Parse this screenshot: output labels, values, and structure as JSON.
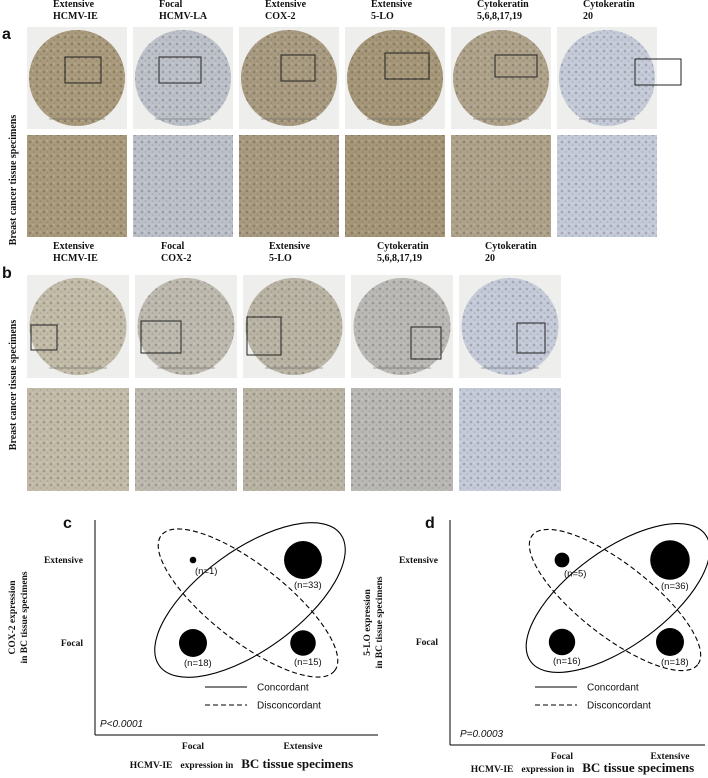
{
  "figure": {
    "panel_a": {
      "label": "a",
      "row_label": "Breast cancer  tissue specimens",
      "columns": [
        [
          "Extensive",
          "HCMV-IE"
        ],
        [
          "Focal",
          "HCMV-LA"
        ],
        [
          "Extensive",
          "COX-2"
        ],
        [
          "Extensive",
          "5-LO"
        ],
        [
          "Cytokeratin",
          "5,6,8,17,19"
        ],
        [
          "Cytokeratin",
          "20"
        ]
      ],
      "stain_colors": [
        "#a99a7c",
        "#bcc0c8",
        "#a89a80",
        "#a59678",
        "#aea28a",
        "#c4cad8"
      ]
    },
    "panel_b": {
      "label": "b",
      "row_label": "Breast cancer  tissue specimens",
      "columns": [
        [
          "Extensive",
          "HCMV-IE"
        ],
        [
          "Focal",
          "COX-2"
        ],
        [
          "Extensive",
          "5-LO"
        ],
        [
          "Cytokeratin",
          "5,6,8,17,19"
        ],
        [
          "Cytokeratin",
          "20"
        ]
      ],
      "stain_colors": [
        "#c2bba8",
        "#bdb9ae",
        "#b9b3a4",
        "#bab8b4",
        "#c4cad8"
      ]
    }
  },
  "chart_data": [
    {
      "type": "bubble",
      "label": "c",
      "ylabel": [
        "COX-2 expression",
        "in BC tissue specimens"
      ],
      "xlabel": [
        "HCMV-IE",
        "expression in",
        "BC tissue specimens"
      ],
      "categories": [
        "Focal",
        "Extensive"
      ],
      "ycategories": [
        "Focal",
        "Extensive"
      ],
      "x": [
        "Focal",
        "Extensive",
        "Focal",
        "Extensive"
      ],
      "y": [
        "Extensive",
        "Extensive",
        "Focal",
        "Focal"
      ],
      "values": [
        1,
        33,
        18,
        15
      ],
      "value_labels": [
        "(n=1)",
        "(n=33)",
        "(n=18)",
        "(n=15)"
      ],
      "legend": [
        "Concordant",
        "Disconcordant"
      ],
      "annotation": "P<0.0001",
      "color": "#000000"
    },
    {
      "type": "bubble",
      "label": "d",
      "ylabel": [
        "5-LO expression",
        "in BC tissue specimens"
      ],
      "xlabel": [
        "HCMV-IE",
        "expression in",
        "BC tissue specimens"
      ],
      "categories": [
        "Focal",
        "Extensive"
      ],
      "ycategories": [
        "Focal",
        "Extensive"
      ],
      "x": [
        "Focal",
        "Extensive",
        "Focal",
        "Extensive"
      ],
      "y": [
        "Extensive",
        "Extensive",
        "Focal",
        "Focal"
      ],
      "values": [
        5,
        36,
        16,
        18
      ],
      "value_labels": [
        "(n=5)",
        "(n=36)",
        "(n=16)",
        "(n=18)"
      ],
      "legend": [
        "Concordant",
        "Disconcordant"
      ],
      "annotation": "P=0.0003",
      "color": "#000000"
    }
  ]
}
